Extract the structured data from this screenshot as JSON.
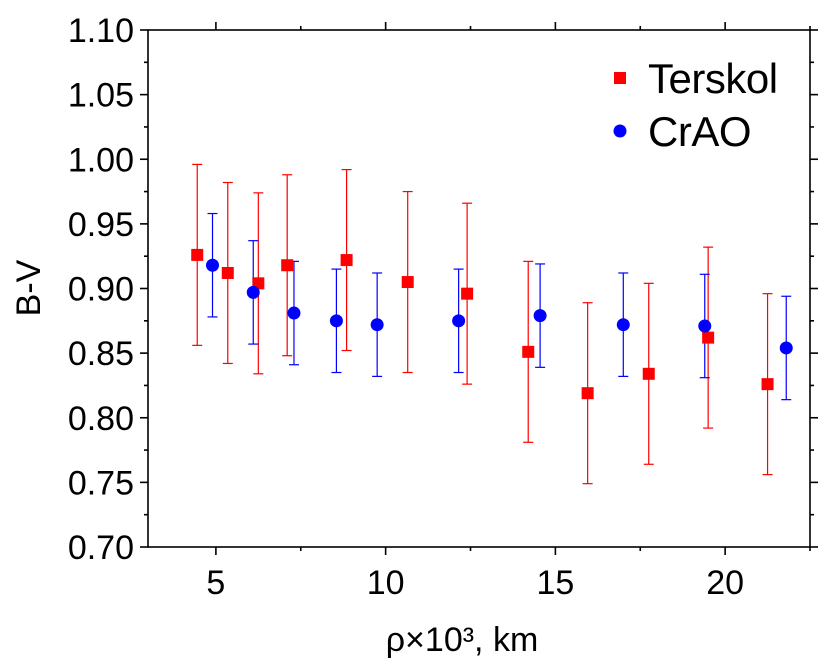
{
  "chart_data": {
    "type": "scatter",
    "xlabel": "ρ×10³, km",
    "ylabel": "B-V",
    "xlim": [
      3,
      22.5
    ],
    "ylim": [
      0.7,
      1.1
    ],
    "x_ticks": [
      5,
      10,
      15,
      20
    ],
    "y_ticks": [
      "0.70",
      "0.75",
      "0.80",
      "0.85",
      "0.90",
      "0.95",
      "1.00",
      "1.05",
      "1.10"
    ],
    "grid": false,
    "legend": {
      "placement": "top-right"
    },
    "series": [
      {
        "name": "Terskol",
        "marker": "square",
        "color": "#ff0000",
        "points": [
          {
            "x": 4.45,
            "y": 0.926,
            "yerr": 0.07
          },
          {
            "x": 5.35,
            "y": 0.912,
            "yerr": 0.07
          },
          {
            "x": 6.25,
            "y": 0.904,
            "yerr": 0.07
          },
          {
            "x": 7.1,
            "y": 0.918,
            "yerr": 0.07
          },
          {
            "x": 8.85,
            "y": 0.922,
            "yerr": 0.07
          },
          {
            "x": 10.65,
            "y": 0.905,
            "yerr": 0.07
          },
          {
            "x": 12.4,
            "y": 0.896,
            "yerr": 0.07
          },
          {
            "x": 14.2,
            "y": 0.851,
            "yerr": 0.07
          },
          {
            "x": 15.95,
            "y": 0.819,
            "yerr": 0.07
          },
          {
            "x": 17.75,
            "y": 0.834,
            "yerr": 0.07
          },
          {
            "x": 19.5,
            "y": 0.862,
            "yerr": 0.07
          },
          {
            "x": 21.25,
            "y": 0.826,
            "yerr": 0.07
          }
        ]
      },
      {
        "name": "CrAO",
        "marker": "circle",
        "color": "#0000ff",
        "points": [
          {
            "x": 4.9,
            "y": 0.918,
            "yerr": 0.04
          },
          {
            "x": 6.1,
            "y": 0.897,
            "yerr": 0.04
          },
          {
            "x": 7.3,
            "y": 0.881,
            "yerr": 0.04
          },
          {
            "x": 8.55,
            "y": 0.875,
            "yerr": 0.04
          },
          {
            "x": 9.75,
            "y": 0.872,
            "yerr": 0.04
          },
          {
            "x": 12.15,
            "y": 0.875,
            "yerr": 0.04
          },
          {
            "x": 14.55,
            "y": 0.879,
            "yerr": 0.04
          },
          {
            "x": 17.0,
            "y": 0.872,
            "yerr": 0.04
          },
          {
            "x": 19.4,
            "y": 0.871,
            "yerr": 0.04
          },
          {
            "x": 21.8,
            "y": 0.854,
            "yerr": 0.04
          }
        ]
      }
    ]
  }
}
